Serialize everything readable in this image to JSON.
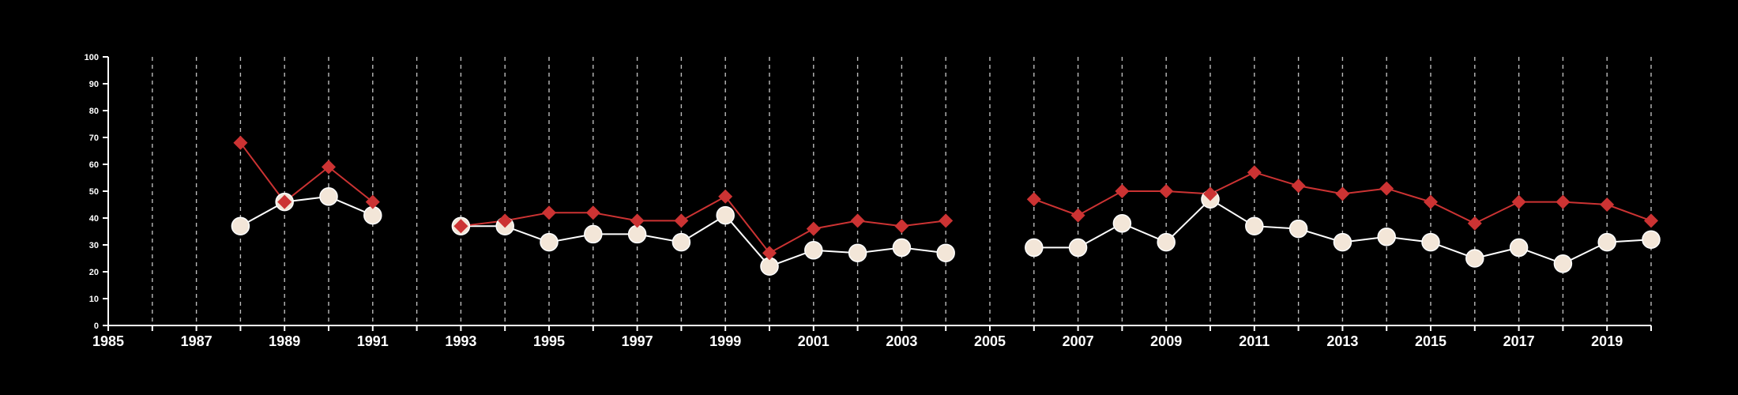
{
  "chart_data": {
    "type": "line",
    "title": "",
    "xlabel": "",
    "ylabel": "",
    "xlim": [
      1985,
      2020
    ],
    "ylim": [
      0,
      100
    ],
    "x_ticks": [
      "1985",
      "1987",
      "1989",
      "1991",
      "1993",
      "1995",
      "1997",
      "1999",
      "2001",
      "2003",
      "2005",
      "2007",
      "2009",
      "2011",
      "2013",
      "2015",
      "2017",
      "2019"
    ],
    "y_ticks": [
      "0",
      "10",
      "20",
      "30",
      "40",
      "50",
      "60",
      "70",
      "80",
      "90",
      "100"
    ],
    "grid": "vertical dashed, one per year",
    "legend": "none",
    "colors": {
      "background": "#000000",
      "axis": "#ffffff",
      "grid": "#bbbbbb"
    },
    "series": [
      {
        "marker": "diamond",
        "color": "#cc3333",
        "points": [
          [
            1988,
            68
          ],
          [
            1989,
            46
          ],
          [
            1990,
            59
          ],
          [
            1991,
            46
          ],
          [
            1993,
            37
          ],
          [
            1994,
            39
          ],
          [
            1995,
            42
          ],
          [
            1996,
            42
          ],
          [
            1997,
            39
          ],
          [
            1998,
            39
          ],
          [
            1999,
            48
          ],
          [
            2000,
            27
          ],
          [
            2001,
            36
          ],
          [
            2002,
            39
          ],
          [
            2003,
            37
          ],
          [
            2004,
            39
          ],
          [
            2006,
            47
          ],
          [
            2007,
            41
          ],
          [
            2008,
            50
          ],
          [
            2009,
            50
          ],
          [
            2010,
            49
          ],
          [
            2011,
            57
          ],
          [
            2012,
            52
          ],
          [
            2013,
            49
          ],
          [
            2014,
            51
          ],
          [
            2015,
            46
          ],
          [
            2016,
            38
          ],
          [
            2017,
            46
          ],
          [
            2018,
            46
          ],
          [
            2019,
            45
          ],
          [
            2020,
            39
          ]
        ]
      },
      {
        "marker": "circle",
        "color": "#f3e6d8",
        "line_color": "#ffffff",
        "points": [
          [
            1988,
            37
          ],
          [
            1989,
            46
          ],
          [
            1990,
            48
          ],
          [
            1991,
            41
          ],
          [
            1993,
            37
          ],
          [
            1994,
            37
          ],
          [
            1995,
            31
          ],
          [
            1996,
            34
          ],
          [
            1997,
            34
          ],
          [
            1998,
            31
          ],
          [
            1999,
            41
          ],
          [
            2000,
            22
          ],
          [
            2001,
            28
          ],
          [
            2002,
            27
          ],
          [
            2003,
            29
          ],
          [
            2004,
            27
          ],
          [
            2006,
            29
          ],
          [
            2007,
            29
          ],
          [
            2008,
            38
          ],
          [
            2009,
            31
          ],
          [
            2010,
            47
          ],
          [
            2011,
            37
          ],
          [
            2012,
            36
          ],
          [
            2013,
            31
          ],
          [
            2014,
            33
          ],
          [
            2015,
            31
          ],
          [
            2016,
            25
          ],
          [
            2017,
            29
          ],
          [
            2018,
            23
          ],
          [
            2019,
            31
          ],
          [
            2020,
            32
          ]
        ]
      }
    ]
  }
}
